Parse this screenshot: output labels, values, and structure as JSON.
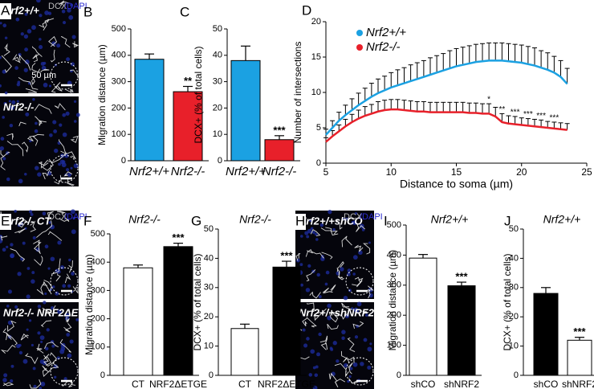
{
  "image_panels": [
    {
      "label": "A",
      "stain": [
        "DCX",
        "/DAPI"
      ],
      "images": [
        {
          "caption": "Nrf2+/+",
          "scale_bar": "50 µm"
        },
        {
          "caption": "Nrf2-/-"
        }
      ]
    },
    {
      "label": "E",
      "stain": [
        "DCX",
        "/DAPI"
      ],
      "images": [
        {
          "caption": "Nrf2-/- CT"
        },
        {
          "caption": "Nrf2-/- NRF2ΔETGE"
        }
      ]
    },
    {
      "label": "H",
      "stain": [
        "DCX",
        "/DAPI"
      ],
      "images": [
        {
          "caption": "Nrf2+/+shCO"
        },
        {
          "caption": "Nrf2+/+shNRF2"
        }
      ]
    }
  ],
  "chart_data": [
    {
      "type": "bar",
      "panel": "B",
      "ylabel": "Migration distance (µm)",
      "categories": [
        "Nrf2+/+",
        "Nrf2-/-"
      ],
      "values": [
        385,
        262
      ],
      "errors": [
        20,
        20
      ],
      "colors": [
        "#1ba1e2",
        "#e8202a"
      ],
      "significance": [
        null,
        "**"
      ],
      "ylim": [
        0,
        500
      ],
      "yticks": [
        0,
        100,
        200,
        300,
        400,
        500
      ]
    },
    {
      "type": "bar",
      "panel": "C",
      "ylabel": "DCX+ (% of total cells)",
      "categories": [
        "Nrf2+/+",
        "Nrf2-/-"
      ],
      "values": [
        38,
        8
      ],
      "errors": [
        5.5,
        1.5
      ],
      "colors": [
        "#1ba1e2",
        "#e8202a"
      ],
      "significance": [
        null,
        "***"
      ],
      "ylim": [
        0,
        50
      ],
      "yticks": [
        0,
        10,
        20,
        30,
        40,
        50
      ]
    },
    {
      "type": "line",
      "panel": "D",
      "ylabel": "Number of intersections",
      "xlabel": "Distance to soma (µm)",
      "x": [
        5,
        5.5,
        6,
        6.5,
        7,
        7.5,
        8,
        8.5,
        9,
        9.5,
        10,
        10.5,
        11,
        11.5,
        12,
        12.5,
        13,
        13.5,
        14,
        14.5,
        15,
        15.5,
        16,
        16.5,
        17,
        17.5,
        18,
        18.5,
        19,
        19.5,
        20,
        20.5,
        21,
        21.5,
        22,
        22.5,
        23,
        23.5
      ],
      "series": [
        {
          "name": "Nrf2+/+",
          "color": "#1ba1e2",
          "values": [
            4,
            5,
            6,
            6.8,
            7.5,
            8.2,
            8.8,
            9.4,
            9.9,
            10.3,
            10.7,
            11,
            11.3,
            11.6,
            11.9,
            12.2,
            12.5,
            12.8,
            13.1,
            13.4,
            13.7,
            13.9,
            14.1,
            14.3,
            14.4,
            14.5,
            14.5,
            14.5,
            14.4,
            14.3,
            14.2,
            14,
            13.8,
            13.5,
            13.2,
            12.8,
            12.2,
            11.2
          ],
          "errors": [
            0.8,
            1,
            1.2,
            1.4,
            1.6,
            1.7,
            1.8,
            1.9,
            2,
            2,
            2.1,
            2.2,
            2.2,
            2.3,
            2.3,
            2.3,
            2.4,
            2.4,
            2.4,
            2.5,
            2.5,
            2.5,
            2.5,
            2.5,
            2.5,
            2.5,
            2.5,
            2.5,
            2.5,
            2.5,
            2.5,
            2.5,
            2.5,
            2.4,
            2.4,
            2.3,
            2.3,
            2.2
          ]
        },
        {
          "name": "Nrf2-/-",
          "color": "#e8202a",
          "values": [
            3,
            3.8,
            4.5,
            5.2,
            5.8,
            6.3,
            6.7,
            7,
            7.3,
            7.5,
            7.6,
            7.6,
            7.5,
            7.4,
            7.3,
            7.3,
            7.2,
            7.2,
            7.2,
            7.2,
            7.2,
            7.2,
            7.1,
            7.1,
            7,
            7,
            6.6,
            5.8,
            5.6,
            5.5,
            5.4,
            5.3,
            5.2,
            5.1,
            5,
            4.9,
            4.8,
            4.7
          ],
          "errors": [
            0.6,
            0.8,
            0.9,
            1,
            1.1,
            1.2,
            1.3,
            1.3,
            1.4,
            1.4,
            1.4,
            1.4,
            1.4,
            1.4,
            1.4,
            1.4,
            1.4,
            1.4,
            1.4,
            1.4,
            1.4,
            1.4,
            1.4,
            1.4,
            1.4,
            1.4,
            1.3,
            1.2,
            1.1,
            1.1,
            1,
            1,
            1,
            1,
            0.9,
            0.9,
            0.9,
            0.9
          ]
        }
      ],
      "significance": [
        null,
        null,
        null,
        null,
        null,
        null,
        null,
        null,
        null,
        null,
        null,
        null,
        null,
        null,
        null,
        null,
        null,
        null,
        null,
        null,
        null,
        null,
        null,
        null,
        null,
        "*",
        null,
        "**",
        null,
        "***",
        null,
        "***",
        null,
        "***",
        null,
        "***",
        null,
        null
      ],
      "xlim": [
        5,
        25
      ],
      "xticks": [
        5,
        10,
        15,
        20,
        25
      ],
      "ylim": [
        0,
        20
      ],
      "yticks": [
        0,
        5,
        10,
        15,
        20
      ]
    },
    {
      "type": "bar",
      "panel": "F",
      "title": "Nrf2-/-",
      "ylabel": "Migration distance (µm)",
      "categories": [
        "CT",
        "NRF2ΔETGE"
      ],
      "values": [
        380,
        455
      ],
      "errors": [
        10,
        12
      ],
      "colors": [
        "#ffffff",
        "#000000"
      ],
      "significance": [
        null,
        "***"
      ],
      "ylim": [
        0,
        500
      ],
      "yticks": [
        0,
        100,
        200,
        300,
        400,
        500
      ]
    },
    {
      "type": "bar",
      "panel": "G",
      "title": "Nrf2-/-",
      "ylabel": "DCX+ (% of total cells)",
      "categories": [
        "CT",
        "NRF2ΔETGE"
      ],
      "values": [
        16,
        37
      ],
      "errors": [
        1.5,
        2
      ],
      "colors": [
        "#ffffff",
        "#000000"
      ],
      "significance": [
        null,
        "***"
      ],
      "ylim": [
        0,
        50
      ],
      "yticks": [
        0,
        10,
        20,
        30,
        40,
        50
      ]
    },
    {
      "type": "bar",
      "panel": "I",
      "title": "Nrf2+/+",
      "ylabel": "Migration distance (µm)",
      "categories": [
        "shCO",
        "shNRF2"
      ],
      "values": [
        390,
        298
      ],
      "errors": [
        12,
        12
      ],
      "colors": [
        "#ffffff",
        "#000000"
      ],
      "significance": [
        null,
        "***"
      ],
      "ylim": [
        0,
        500
      ],
      "yticks": [
        0,
        100,
        200,
        300,
        400,
        500
      ]
    },
    {
      "type": "bar",
      "panel": "J",
      "title": "Nrf2+/+",
      "ylabel": "DCX+ (% of total cells)",
      "categories": [
        "shCO",
        "shNRF2"
      ],
      "values": [
        28,
        12
      ],
      "errors": [
        2,
        1
      ],
      "colors": [
        "#000000",
        "#ffffff"
      ],
      "significance": [
        null,
        "***"
      ],
      "ylim": [
        0,
        50
      ],
      "yticks": [
        0,
        10,
        20,
        30,
        40,
        50
      ]
    }
  ]
}
